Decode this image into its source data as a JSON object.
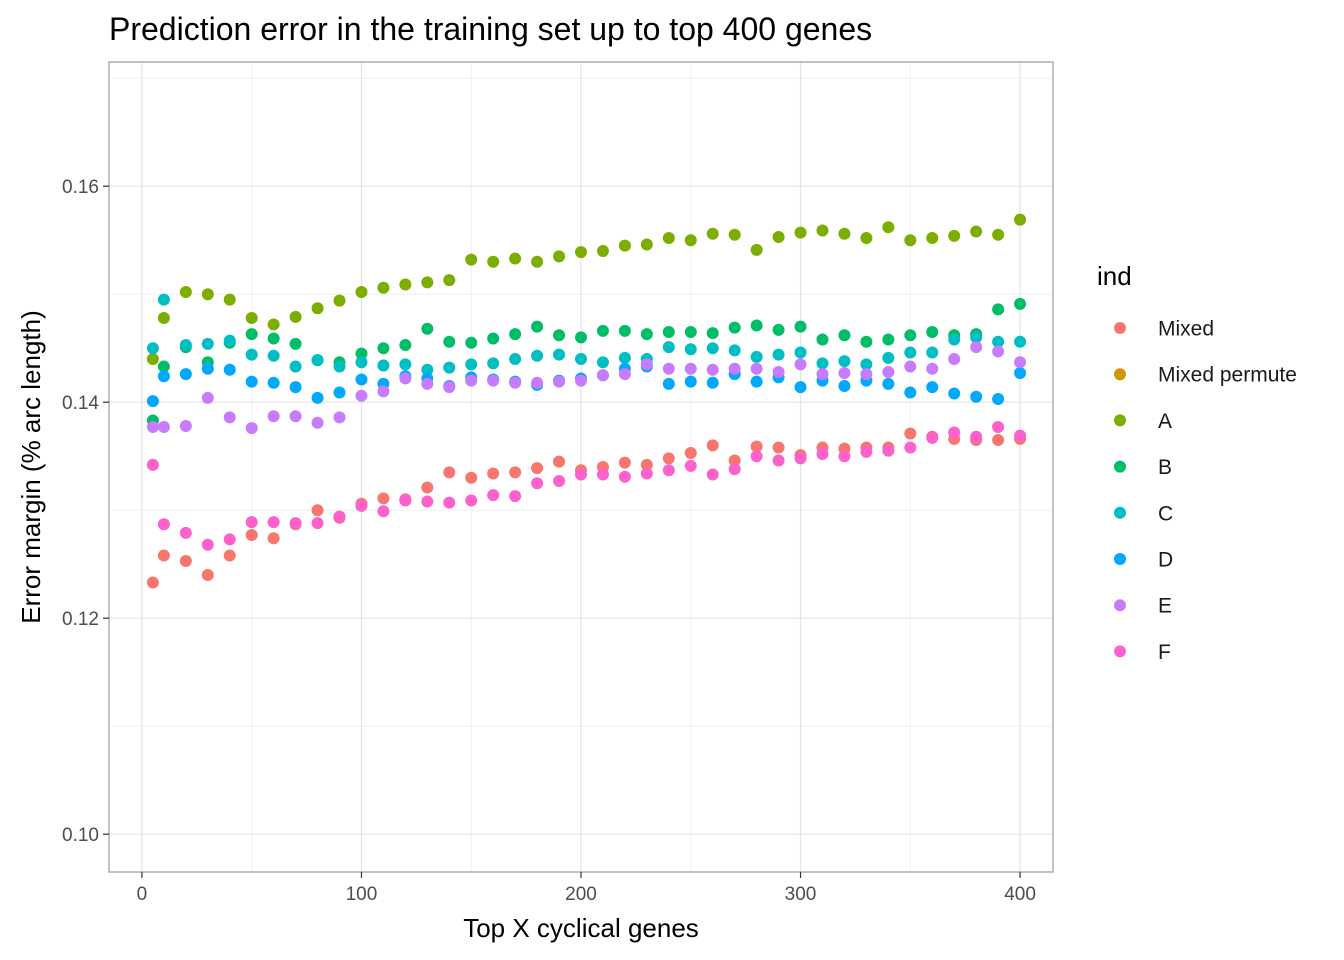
{
  "chart_data": {
    "type": "scatter",
    "title": "Prediction error in the training set up to top 400 genes",
    "xlabel": "Top X cyclical genes",
    "ylabel": "Error margin (% arc length)",
    "xlim": [
      -15,
      415
    ],
    "ylim": [
      0.0965,
      0.1715
    ],
    "xticks": [
      0,
      100,
      200,
      300,
      400
    ],
    "xtick_labels": [
      "0",
      "100",
      "200",
      "300",
      "400"
    ],
    "yticks": [
      0.1,
      0.12,
      0.14,
      0.16
    ],
    "ytick_labels": [
      "0.10",
      "0.12",
      "0.14",
      "0.16"
    ],
    "grid": true,
    "legend": {
      "title": "ind",
      "position": "right"
    },
    "series": [
      {
        "name": "Mixed",
        "color": "#F8766D",
        "x": [
          5,
          10,
          20,
          30,
          40,
          50,
          60,
          70,
          80,
          90,
          100,
          110,
          120,
          130,
          140,
          150,
          160,
          170,
          180,
          190,
          200,
          210,
          220,
          230,
          240,
          250,
          260,
          270,
          280,
          290,
          300,
          310,
          320,
          330,
          340,
          350,
          360,
          370,
          380,
          390,
          400
        ],
        "y": [
          0.1233,
          0.1258,
          0.1253,
          0.124,
          0.1258,
          0.1277,
          0.1274,
          0.1287,
          0.13,
          0.1293,
          0.1306,
          0.1311,
          0.131,
          0.1321,
          0.1335,
          0.133,
          0.1334,
          0.1335,
          0.1339,
          0.1345,
          0.1337,
          0.134,
          0.1344,
          0.1342,
          0.1348,
          0.1353,
          0.136,
          0.1346,
          0.1359,
          0.1358,
          0.1351,
          0.1358,
          0.1357,
          0.1358,
          0.1358,
          0.1371,
          0.1368,
          0.1366,
          0.1365,
          0.1365,
          0.1366
        ]
      },
      {
        "name": "Mixed permute",
        "color": "#CD9600",
        "x": [],
        "y": []
      },
      {
        "name": "A",
        "color": "#7CAE00",
        "x": [
          5,
          10,
          20,
          30,
          40,
          50,
          60,
          70,
          80,
          90,
          100,
          110,
          120,
          130,
          140,
          150,
          160,
          170,
          180,
          190,
          200,
          210,
          220,
          230,
          240,
          250,
          260,
          270,
          280,
          290,
          300,
          310,
          320,
          330,
          340,
          350,
          360,
          370,
          380,
          390,
          400
        ],
        "y": [
          0.144,
          0.1478,
          0.1502,
          0.15,
          0.1495,
          0.1478,
          0.1472,
          0.1479,
          0.1487,
          0.1494,
          0.1502,
          0.1506,
          0.1509,
          0.1511,
          0.1513,
          0.1532,
          0.153,
          0.1533,
          0.153,
          0.1535,
          0.1539,
          0.154,
          0.1545,
          0.1546,
          0.1552,
          0.155,
          0.1556,
          0.1555,
          0.1541,
          0.1553,
          0.1557,
          0.1559,
          0.1556,
          0.1552,
          0.1562,
          0.155,
          0.1552,
          0.1554,
          0.1558,
          0.1555,
          0.1569
        ]
      },
      {
        "name": "B",
        "color": "#00BE67",
        "x": [
          5,
          10,
          20,
          30,
          40,
          50,
          60,
          70,
          80,
          90,
          100,
          110,
          120,
          130,
          140,
          150,
          160,
          170,
          180,
          190,
          200,
          210,
          220,
          230,
          240,
          250,
          260,
          270,
          280,
          290,
          300,
          310,
          320,
          330,
          340,
          350,
          360,
          370,
          380,
          390,
          400
        ],
        "y": [
          0.1383,
          0.1433,
          0.1451,
          0.1437,
          0.1455,
          0.1463,
          0.1459,
          0.1454,
          0.1439,
          0.1437,
          0.1445,
          0.145,
          0.1453,
          0.1468,
          0.1456,
          0.1455,
          0.1459,
          0.1463,
          0.147,
          0.1462,
          0.146,
          0.1466,
          0.1466,
          0.1463,
          0.1465,
          0.1465,
          0.1464,
          0.1469,
          0.1471,
          0.1467,
          0.147,
          0.1458,
          0.1462,
          0.1456,
          0.1458,
          0.1462,
          0.1465,
          0.1462,
          0.1463,
          0.1486,
          0.1491
        ]
      },
      {
        "name": "C",
        "color": "#00BFC4",
        "x": [
          5,
          10,
          20,
          30,
          40,
          50,
          60,
          70,
          80,
          90,
          100,
          110,
          120,
          130,
          140,
          150,
          160,
          170,
          180,
          190,
          200,
          210,
          220,
          230,
          240,
          250,
          260,
          270,
          280,
          290,
          300,
          310,
          320,
          330,
          340,
          350,
          360,
          370,
          380,
          390,
          400
        ],
        "y": [
          0.145,
          0.1495,
          0.1453,
          0.1454,
          0.1457,
          0.1444,
          0.1443,
          0.1433,
          0.1439,
          0.1433,
          0.1437,
          0.1434,
          0.1435,
          0.143,
          0.1432,
          0.1435,
          0.1436,
          0.144,
          0.1443,
          0.1444,
          0.144,
          0.1437,
          0.1441,
          0.144,
          0.1451,
          0.1449,
          0.145,
          0.1448,
          0.1442,
          0.1444,
          0.1446,
          0.1436,
          0.1438,
          0.1435,
          0.1441,
          0.1446,
          0.1446,
          0.1458,
          0.146,
          0.1456,
          0.1456
        ]
      },
      {
        "name": "D",
        "color": "#00A9FF",
        "x": [
          5,
          10,
          20,
          30,
          40,
          50,
          60,
          70,
          80,
          90,
          100,
          110,
          120,
          130,
          140,
          150,
          160,
          170,
          180,
          190,
          200,
          210,
          220,
          230,
          240,
          250,
          260,
          270,
          280,
          290,
          300,
          310,
          320,
          330,
          340,
          350,
          360,
          370,
          380,
          390,
          400
        ],
        "y": [
          0.1401,
          0.1424,
          0.1426,
          0.1431,
          0.143,
          0.1419,
          0.1418,
          0.1414,
          0.1404,
          0.1409,
          0.1421,
          0.1417,
          0.1424,
          0.1422,
          0.1415,
          0.1423,
          0.1421,
          0.1419,
          0.1416,
          0.142,
          0.1422,
          0.1425,
          0.1431,
          0.1433,
          0.1417,
          0.1419,
          0.1418,
          0.1426,
          0.1419,
          0.1423,
          0.1414,
          0.142,
          0.1415,
          0.142,
          0.1417,
          0.1409,
          0.1414,
          0.1408,
          0.1405,
          0.1403,
          0.1427
        ]
      },
      {
        "name": "E",
        "color": "#C77CFF",
        "x": [
          5,
          10,
          20,
          30,
          40,
          50,
          60,
          70,
          80,
          90,
          100,
          110,
          120,
          130,
          140,
          150,
          160,
          170,
          180,
          190,
          200,
          210,
          220,
          230,
          240,
          250,
          260,
          270,
          280,
          290,
          300,
          310,
          320,
          330,
          340,
          350,
          360,
          370,
          380,
          390,
          400
        ],
        "y": [
          0.1377,
          0.1377,
          0.1378,
          0.1404,
          0.1386,
          0.1376,
          0.1387,
          0.1387,
          0.1381,
          0.1386,
          0.1406,
          0.141,
          0.1422,
          0.1417,
          0.1414,
          0.142,
          0.142,
          0.1418,
          0.1418,
          0.1419,
          0.142,
          0.1425,
          0.1426,
          0.1435,
          0.1431,
          0.1431,
          0.143,
          0.1431,
          0.1431,
          0.1428,
          0.1435,
          0.1426,
          0.1427,
          0.1426,
          0.1428,
          0.1433,
          0.1431,
          0.144,
          0.1451,
          0.1447,
          0.1437
        ]
      },
      {
        "name": "F",
        "color": "#FF61CC",
        "x": [
          5,
          10,
          20,
          30,
          40,
          50,
          60,
          70,
          80,
          90,
          100,
          110,
          120,
          130,
          140,
          150,
          160,
          170,
          180,
          190,
          200,
          210,
          220,
          230,
          240,
          250,
          260,
          270,
          280,
          290,
          300,
          310,
          320,
          330,
          340,
          350,
          360,
          370,
          380,
          390,
          400
        ],
        "y": [
          0.1342,
          0.1287,
          0.1279,
          0.1268,
          0.1273,
          0.1289,
          0.1289,
          0.1288,
          0.1288,
          0.1294,
          0.1304,
          0.1299,
          0.1309,
          0.1308,
          0.1307,
          0.1309,
          0.1314,
          0.1313,
          0.1325,
          0.1327,
          0.1333,
          0.1333,
          0.1331,
          0.1334,
          0.1337,
          0.1341,
          0.1333,
          0.1338,
          0.135,
          0.1346,
          0.1348,
          0.1352,
          0.135,
          0.1354,
          0.1355,
          0.1358,
          0.1367,
          0.1372,
          0.1368,
          0.1377,
          0.1369
        ]
      }
    ]
  }
}
